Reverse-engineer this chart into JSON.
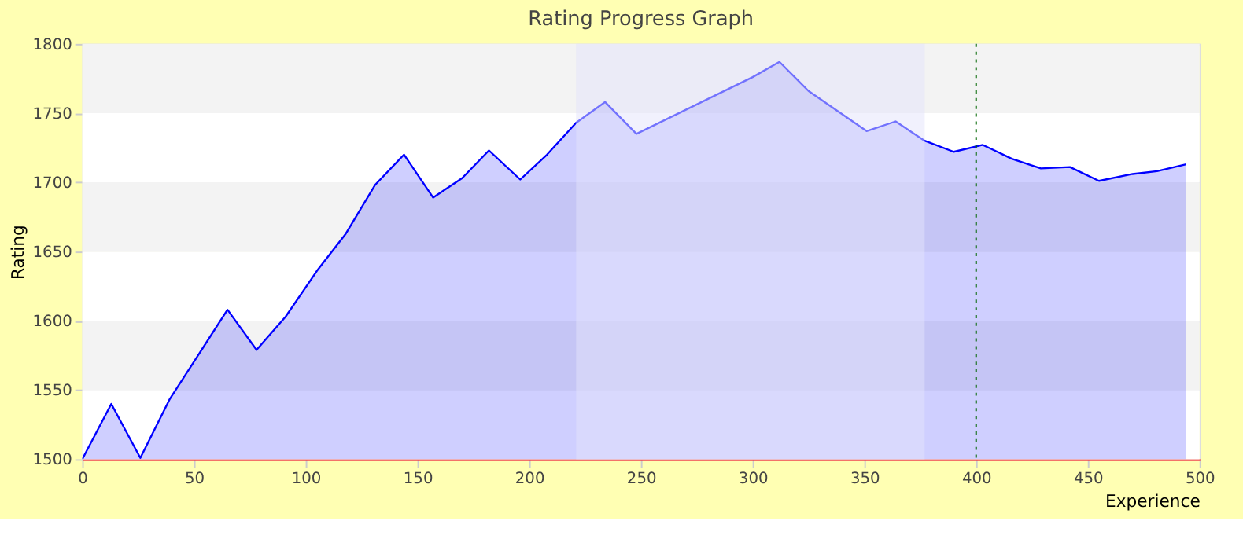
{
  "chart_data": {
    "type": "area",
    "title": "Rating Progress Graph",
    "xlabel": "Experience",
    "ylabel": "Rating",
    "x": [
      0,
      13,
      26,
      39,
      65,
      78,
      91,
      105,
      118,
      131,
      144,
      157,
      170,
      182,
      196,
      208,
      221,
      234,
      248,
      300,
      312,
      325,
      351,
      364,
      377,
      390,
      403,
      416,
      429,
      442,
      455,
      470,
      481,
      494
    ],
    "series": [
      {
        "color": "#0000ff",
        "values": [
          1500,
          1540,
          1501,
          1543,
          1608,
          1579,
          1603,
          1636,
          1663,
          1698,
          1720,
          1689,
          1703,
          1723,
          1702,
          1720,
          1743,
          1758,
          1735,
          1776,
          1787,
          1766,
          1737,
          1744,
          1730,
          1722,
          1727,
          1717,
          1710,
          1711,
          1701,
          1706,
          1708,
          1713
        ]
      }
    ],
    "xlim": [
      0,
      500
    ],
    "ylim": [
      1500,
      1800
    ],
    "xticks": [
      0,
      50,
      100,
      150,
      200,
      250,
      300,
      350,
      400,
      450,
      500
    ],
    "yticks": [
      1500,
      1550,
      1600,
      1650,
      1700,
      1750,
      1800
    ],
    "grid": "y",
    "bands": [
      {
        "axis": "x",
        "from": 221,
        "to": 377,
        "color": "#e3e3fb"
      }
    ],
    "ref_lines": [
      {
        "axis": "x",
        "value": 400,
        "color": "#006600",
        "line_style": "dotted"
      }
    ]
  }
}
